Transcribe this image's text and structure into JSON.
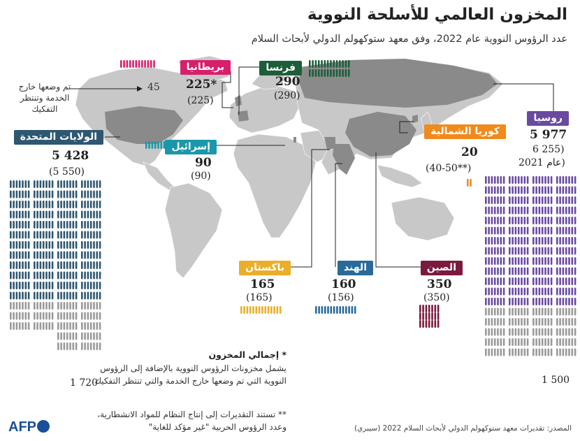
{
  "title": "المخزون العالمي للأسلحة النووية",
  "subtitle": "عدد الرؤوس النووية عام 2022، وفق معهد ستوكهولم الدولي لأبحاث السلام",
  "colors": {
    "usa": "#2e5771",
    "russia": "#6a4aa0",
    "uk": "#d81f6b",
    "france": "#1d5e3a",
    "china": "#7a1a3f",
    "north_korea": "#f08a1c",
    "israel": "#1a97aa",
    "pakistan": "#eaae2a",
    "india": "#2a6a9a",
    "retired": "#9a9a9a",
    "land": "#c8c8c8",
    "highlight": "#888888"
  },
  "chart_data": {
    "type": "table",
    "countries": [
      {
        "key": "usa",
        "name": "الولايات المتحدة",
        "value_2022": "5 428",
        "value_prev": "(5 550)",
        "retired": "1 720"
      },
      {
        "key": "russia",
        "name": "روسيا",
        "value_2022": "5 977",
        "value_prev": "6 255)",
        "prev_note": "عام 2021)",
        "retired": "1 500"
      },
      {
        "key": "uk",
        "name": "بريطانيا",
        "value_2022": "225*",
        "value_prev": "(225)",
        "retired": "45"
      },
      {
        "key": "france",
        "name": "فرنسا",
        "value_2022": "290",
        "value_prev": "(290)"
      },
      {
        "key": "israel",
        "name": "إسرائيل",
        "value_2022": "90",
        "value_prev": "(90)"
      },
      {
        "key": "north_korea",
        "name": "كوريا الشمالية",
        "value_2022": "20",
        "value_prev": "(40-50**)"
      },
      {
        "key": "pakistan",
        "name": "باكستان",
        "value_2022": "165",
        "value_prev": "(165)"
      },
      {
        "key": "india",
        "name": "الهند",
        "value_2022": "160",
        "value_prev": "(156)"
      },
      {
        "key": "china",
        "name": "الصين",
        "value_2022": "350",
        "value_prev": "(350)"
      }
    ]
  },
  "uk_retired_note": "تم وضعها خارج الخدمة وتنتظر التفكيك",
  "footnotes": {
    "total_title": "* إجمالي المخزون",
    "total_line1": "يشمل مخزونات الرؤوس النووية بالإضافة إلى الرؤوس",
    "total_line2": "النووية التي تم وضعها خارج الخدمة والتي تنتظر التفكيك",
    "nk_line1": "** تستند التقديرات إلى إنتاج النظام للمواد الانشطارية،",
    "nk_line2": "وعدد الرؤوس الحربية \"غير مؤكد للغاية\""
  },
  "source": "المصدر: تقديرات معهد ستوكهولم الدولي لأبحاث السلام 2022 (سيبري)",
  "logo": "AFP"
}
